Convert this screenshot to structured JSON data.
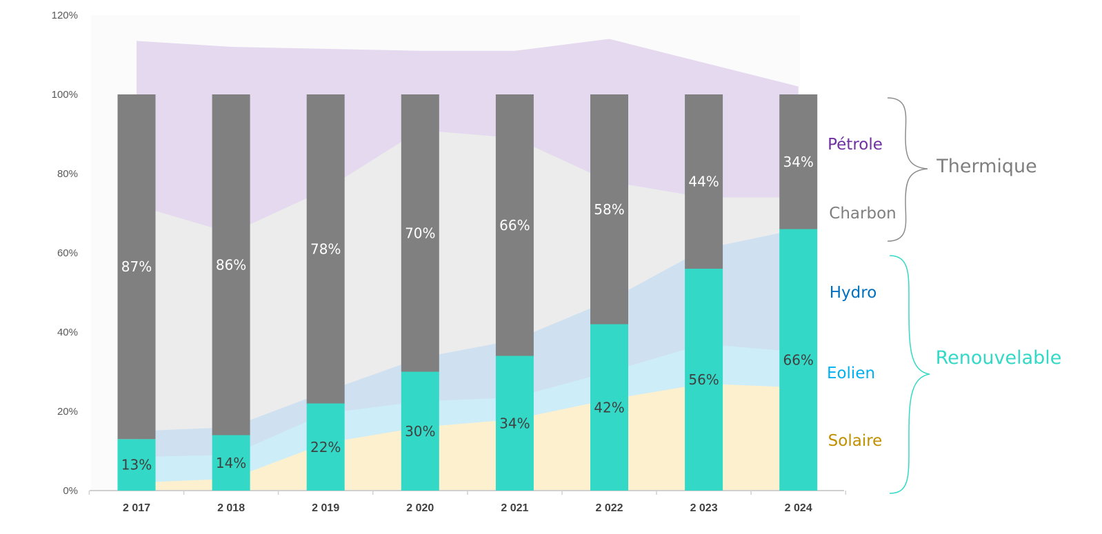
{
  "chart_data": {
    "type": "bar",
    "categories": [
      "2 017",
      "2 018",
      "2 019",
      "2 020",
      "2 021",
      "2 022",
      "2 023",
      "2 024"
    ],
    "ylim": [
      0,
      120
    ],
    "yticks": [
      "0%",
      "20%",
      "40%",
      "60%",
      "80%",
      "100%",
      "120%"
    ],
    "grid": false,
    "series": [
      {
        "name": "Renouvelable",
        "values": [
          13,
          14,
          22,
          30,
          34,
          42,
          56,
          66
        ],
        "labels": [
          "13%",
          "14%",
          "22%",
          "30%",
          "34%",
          "42%",
          "56%",
          "66%"
        ],
        "color": "#33d9c6",
        "label_color": "#404040"
      },
      {
        "name": "Thermique",
        "values": [
          87,
          86,
          78,
          70,
          66,
          58,
          44,
          34
        ],
        "labels": [
          "87%",
          "86%",
          "78%",
          "70%",
          "66%",
          "58%",
          "44%",
          "34%"
        ],
        "color": "#808080",
        "label_color": "#ffffff"
      }
    ],
    "background_areas": [
      {
        "name": "Solaire",
        "color": "#fdf0cf",
        "values": [
          2,
          3,
          12,
          16,
          18,
          23,
          27,
          26
        ]
      },
      {
        "name": "Eolien",
        "color": "#cdedf8",
        "values": [
          8.5,
          9,
          19.5,
          22.5,
          23.5,
          30,
          37,
          35
        ]
      },
      {
        "name": "Hydro",
        "color": "#cfe1f0",
        "values": [
          15,
          16,
          25,
          33.5,
          38,
          48,
          61,
          66
        ]
      },
      {
        "name": "Charbon",
        "color": "#ececec",
        "values": [
          72,
          65,
          76,
          91,
          89,
          78,
          74,
          74
        ]
      },
      {
        "name": "Pétrole",
        "color": "#e4d9ee",
        "values": [
          113.5,
          112,
          111.5,
          111,
          111,
          114,
          108,
          102
        ]
      }
    ]
  },
  "legend": {
    "sources": [
      {
        "name": "Pétrole",
        "color": "#7030a0"
      },
      {
        "name": "Charbon",
        "color": "#7f7f7f"
      },
      {
        "name": "Hydro",
        "color": "#0070c0"
      },
      {
        "name": "Eolien",
        "color": "#00b0f0"
      },
      {
        "name": "Solaire",
        "color": "#bf9000"
      }
    ],
    "groups": [
      {
        "name": "Thermique",
        "color": "#7f7f7f"
      },
      {
        "name": "Renouvelable",
        "color": "#33d9c6"
      }
    ]
  }
}
